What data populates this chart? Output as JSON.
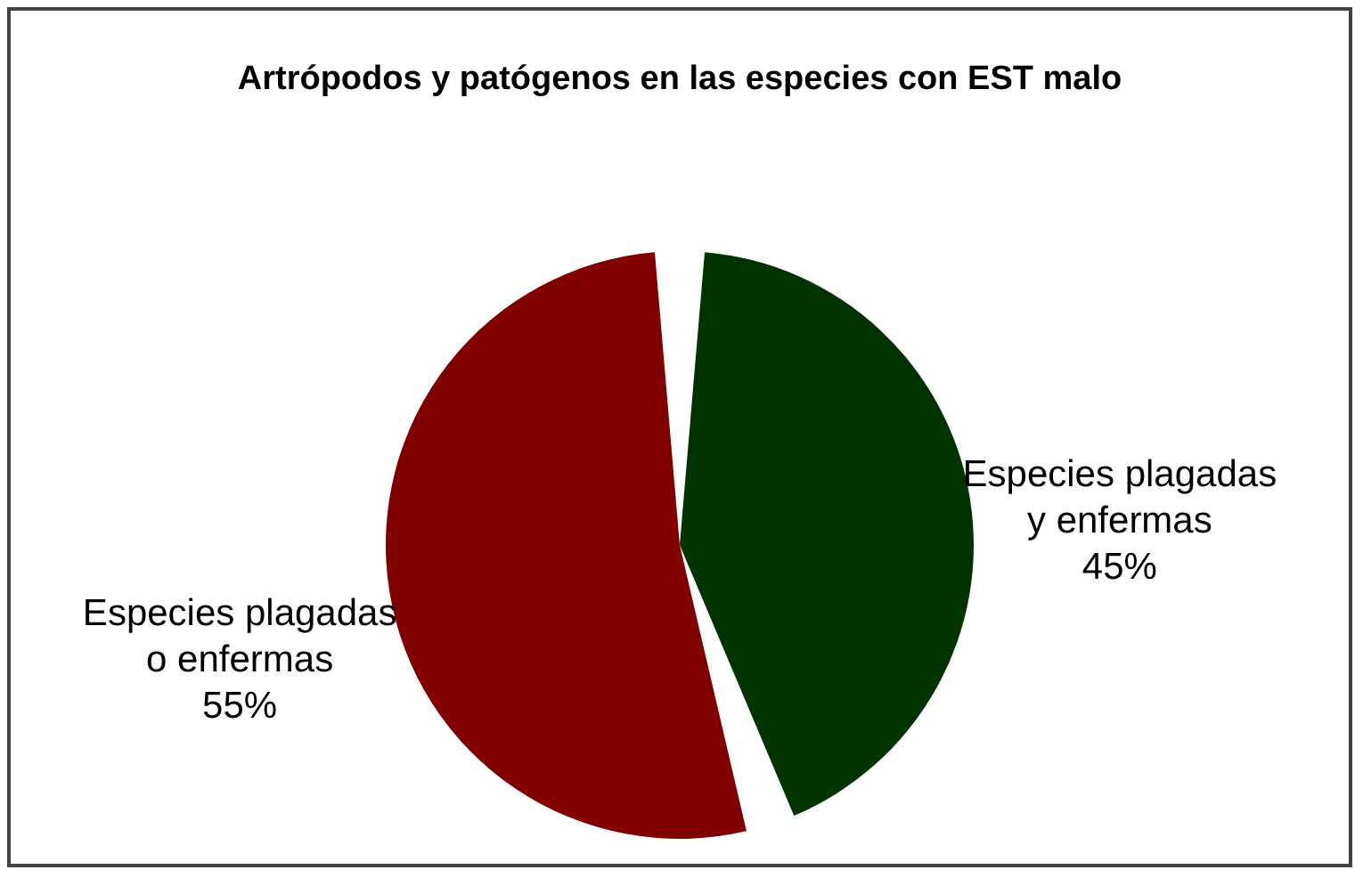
{
  "chart_data": {
    "type": "pie",
    "title": "Artrópodos y patógenos en las especies con EST malo",
    "categories": [
      "Especies plagadas y enfermas",
      "Especies plagadas o enfermas"
    ],
    "values": [
      45,
      55
    ],
    "colors": [
      "#003300",
      "#800000"
    ],
    "value_labels": [
      "45%",
      "55%"
    ],
    "legend": false
  }
}
